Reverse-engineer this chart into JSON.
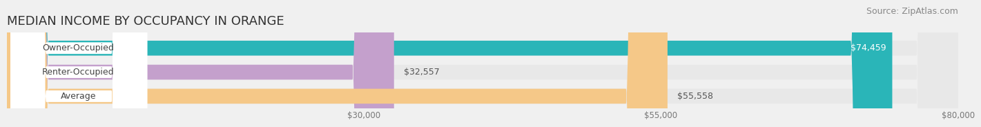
{
  "title": "MEDIAN INCOME BY OCCUPANCY IN ORANGE",
  "source": "Source: ZipAtlas.com",
  "categories": [
    "Owner-Occupied",
    "Renter-Occupied",
    "Average"
  ],
  "values": [
    74459,
    32557,
    55558
  ],
  "bar_colors": [
    "#2ab5b8",
    "#c4a0cc",
    "#f5c888"
  ],
  "bar_bg_color": "#e8e8e8",
  "white_label_bg": "#ffffff",
  "label_values": [
    "$74,459",
    "$32,557",
    "$55,558"
  ],
  "xmin": 0,
  "xmax": 80000,
  "xticks": [
    30000,
    55000,
    80000
  ],
  "xtick_labels": [
    "$30,000",
    "$55,000",
    "$80,000"
  ],
  "title_fontsize": 13,
  "source_fontsize": 9,
  "bar_label_fontsize": 9,
  "cat_label_fontsize": 9,
  "value_label_color_inside": "#ffffff",
  "value_label_color_outside": "#666666"
}
